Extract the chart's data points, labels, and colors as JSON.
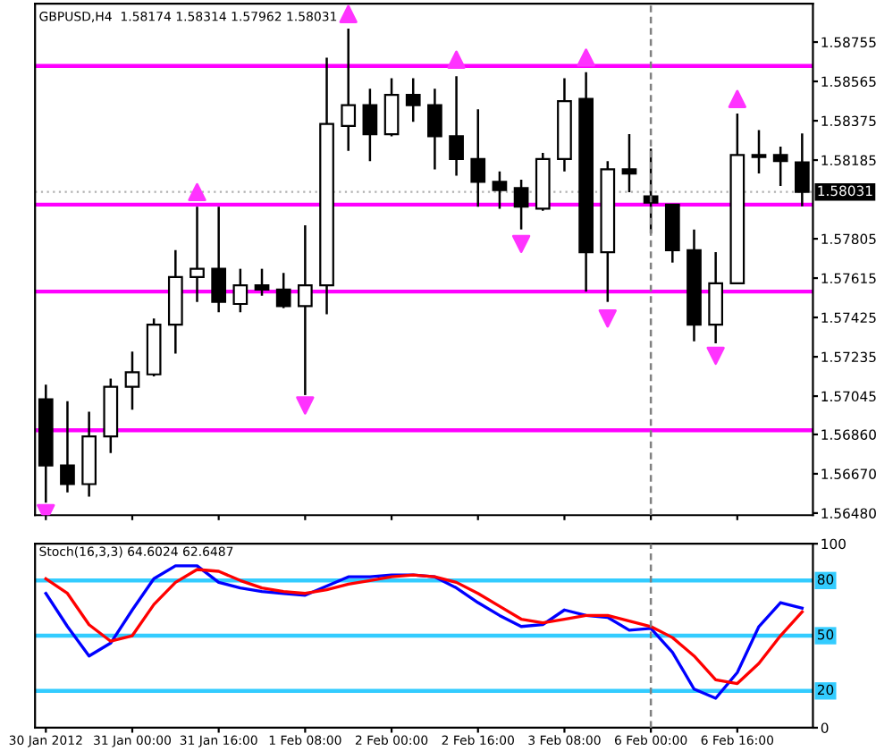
{
  "chart_data": [
    {
      "type": "candlestick",
      "title": "GBPUSD,H4  1.58174 1.58314 1.57962 1.58031",
      "categories": [
        "30 Jan 2012",
        null,
        null,
        null,
        "31 Jan 00:00",
        null,
        null,
        null,
        "31 Jan 16:00",
        null,
        null,
        null,
        "1 Feb 08:00",
        null,
        null,
        null,
        "2 Feb 00:00",
        null,
        null,
        null,
        "2 Feb 16:00",
        null,
        null,
        null,
        "3 Feb 08:00",
        null,
        null,
        null,
        "6 Feb 00:00",
        null,
        null,
        null,
        "6 Feb 16:00",
        null,
        null,
        null
      ],
      "ohlc": [
        [
          1.5703,
          1.571,
          1.5653,
          1.5671
        ],
        [
          1.5671,
          1.5702,
          1.5658,
          1.5662
        ],
        [
          1.5662,
          1.5697,
          1.5656,
          1.5685
        ],
        [
          1.5685,
          1.5713,
          1.5677,
          1.5709
        ],
        [
          1.5709,
          1.5726,
          1.5698,
          1.5716
        ],
        [
          1.5715,
          1.5742,
          1.5714,
          1.5739
        ],
        [
          1.5739,
          1.5775,
          1.5725,
          1.5762
        ],
        [
          1.5762,
          1.5796,
          1.575,
          1.5766
        ],
        [
          1.5766,
          1.5796,
          1.5745,
          1.575
        ],
        [
          1.5749,
          1.5766,
          1.5745,
          1.5758
        ],
        [
          1.5758,
          1.5766,
          1.5753,
          1.5756
        ],
        [
          1.5756,
          1.5764,
          1.5747,
          1.5748
        ],
        [
          1.5748,
          1.5787,
          1.5705,
          1.5758
        ],
        [
          1.5758,
          1.5868,
          1.5744,
          1.5836
        ],
        [
          1.5835,
          1.5882,
          1.5823,
          1.5845
        ],
        [
          1.5845,
          1.5853,
          1.5818,
          1.5831
        ],
        [
          1.5831,
          1.5858,
          1.583,
          1.585
        ],
        [
          1.585,
          1.5858,
          1.5837,
          1.5845
        ],
        [
          1.5845,
          1.5853,
          1.5814,
          1.583
        ],
        [
          1.583,
          1.5859,
          1.5811,
          1.5819
        ],
        [
          1.5819,
          1.5843,
          1.5796,
          1.5808
        ],
        [
          1.5808,
          1.5813,
          1.5795,
          1.5804
        ],
        [
          1.5805,
          1.5809,
          1.5785,
          1.5796
        ],
        [
          1.5795,
          1.5822,
          1.5794,
          1.5819
        ],
        [
          1.5819,
          1.5858,
          1.5813,
          1.5847
        ],
        [
          1.5848,
          1.5861,
          1.5755,
          1.5774
        ],
        [
          1.5774,
          1.5818,
          1.575,
          1.5814
        ],
        [
          1.5814,
          1.5831,
          1.5803,
          1.5812
        ],
        [
          1.5801,
          1.5824,
          1.5783,
          1.5798
        ],
        [
          1.5797,
          1.5797,
          1.5769,
          1.5775
        ],
        [
          1.5775,
          1.5785,
          1.5731,
          1.5739
        ],
        [
          1.5739,
          1.5774,
          1.573,
          1.5759
        ],
        [
          1.5759,
          1.5841,
          1.5759,
          1.5821
        ],
        [
          1.582,
          1.5833,
          1.5812,
          1.5821
        ],
        [
          1.5821,
          1.5825,
          1.5806,
          1.5818
        ],
        [
          1.58174,
          1.58314,
          1.57962,
          1.58031
        ]
      ],
      "series": [
        {
          "type": "scatter",
          "marker": "triangle",
          "color": "#ff33ff",
          "values": [
            null,
            null,
            null,
            null,
            null,
            null,
            null,
            1.5803,
            null,
            null,
            null,
            null,
            null,
            null,
            1.5889,
            null,
            null,
            null,
            null,
            1.5867,
            null,
            null,
            null,
            null,
            null,
            1.5868,
            null,
            null,
            null,
            null,
            null,
            null,
            1.5848,
            null,
            null,
            null
          ]
        },
        {
          "type": "scatter",
          "marker": "triangle",
          "color": "#ff33ff",
          "values": [
            1.5648,
            null,
            null,
            null,
            null,
            null,
            null,
            null,
            null,
            null,
            null,
            null,
            1.57,
            null,
            null,
            null,
            null,
            null,
            null,
            null,
            null,
            null,
            1.5778,
            null,
            null,
            null,
            1.5742,
            null,
            null,
            null,
            null,
            1.5724,
            null,
            null,
            null,
            null
          ]
        }
      ],
      "ylim": [
        1.5647,
        1.5894
      ],
      "yticks": [
        {
          "value": 1.5648,
          "label": "1.56480"
        },
        {
          "value": 1.5667,
          "label": "1.56670"
        },
        {
          "value": 1.5686,
          "label": "1.56860"
        },
        1.57045,
        1.57235,
        1.57425,
        1.57615,
        1.57805,
        1.58185,
        1.58375,
        1.58565,
        1.58755
      ],
      "ref_lines": [
        {
          "axis": "y",
          "value": 1.5864,
          "color": "#ff00ff"
        },
        {
          "axis": "y",
          "value": 1.5797,
          "color": "#ff00ff"
        },
        {
          "axis": "y",
          "value": 1.5755,
          "color": "#ff00ff"
        },
        {
          "axis": "y",
          "value": 1.5688,
          "color": "#ff00ff"
        },
        {
          "axis": "y",
          "value": 1.58031,
          "label": "1.58031",
          "color": "#b0b0b0",
          "line_style": "dotted"
        },
        {
          "axis": "x",
          "value": "6 Feb 00:00",
          "color": "#808080",
          "line_style": "dashed"
        }
      ],
      "tick_labels": "y"
    },
    {
      "type": "line",
      "title": "Stoch(16,3,3) 64.6024 62.6487",
      "categories": [
        "30 Jan 2012",
        null,
        null,
        null,
        "31 Jan 00:00",
        null,
        null,
        null,
        "31 Jan 16:00",
        null,
        null,
        null,
        "1 Feb 08:00",
        null,
        null,
        null,
        "2 Feb 00:00",
        null,
        null,
        null,
        "2 Feb 16:00",
        null,
        null,
        null,
        "3 Feb 08:00",
        null,
        null,
        null,
        "6 Feb 00:00",
        null,
        null,
        null,
        "6 Feb 16:00",
        null,
        null,
        null
      ],
      "series": [
        {
          "color": "#0000ff",
          "values": [
            73,
            55,
            39,
            46,
            64,
            81,
            88,
            88,
            79,
            76,
            74,
            73,
            72,
            77,
            82,
            82,
            83,
            83,
            82,
            76,
            68,
            61,
            55,
            56,
            64,
            61,
            60,
            53,
            54,
            41,
            21,
            16,
            30,
            55,
            68,
            65
          ]
        },
        {
          "color": "#ff0000",
          "values": [
            81,
            73,
            56,
            47,
            50,
            67,
            79,
            86,
            85,
            80,
            76,
            74,
            73,
            75,
            78,
            80,
            82,
            83,
            82,
            79,
            73,
            66,
            59,
            57,
            59,
            61,
            61,
            58,
            55,
            49,
            39,
            26,
            24,
            35,
            50,
            63
          ]
        }
      ],
      "ylim": [
        0,
        100
      ],
      "yticks": [
        0,
        100
      ],
      "ref_lines": [
        {
          "axis": "y",
          "value": 80,
          "label": "80",
          "color": "#33ccff"
        },
        {
          "axis": "y",
          "value": 50,
          "label": "50",
          "color": "#33ccff"
        },
        {
          "axis": "y",
          "value": 20,
          "label": "20",
          "color": "#33ccff"
        },
        {
          "axis": "x",
          "value": "6 Feb 00:00",
          "color": "#808080",
          "line_style": "dashed"
        }
      ]
    }
  ]
}
